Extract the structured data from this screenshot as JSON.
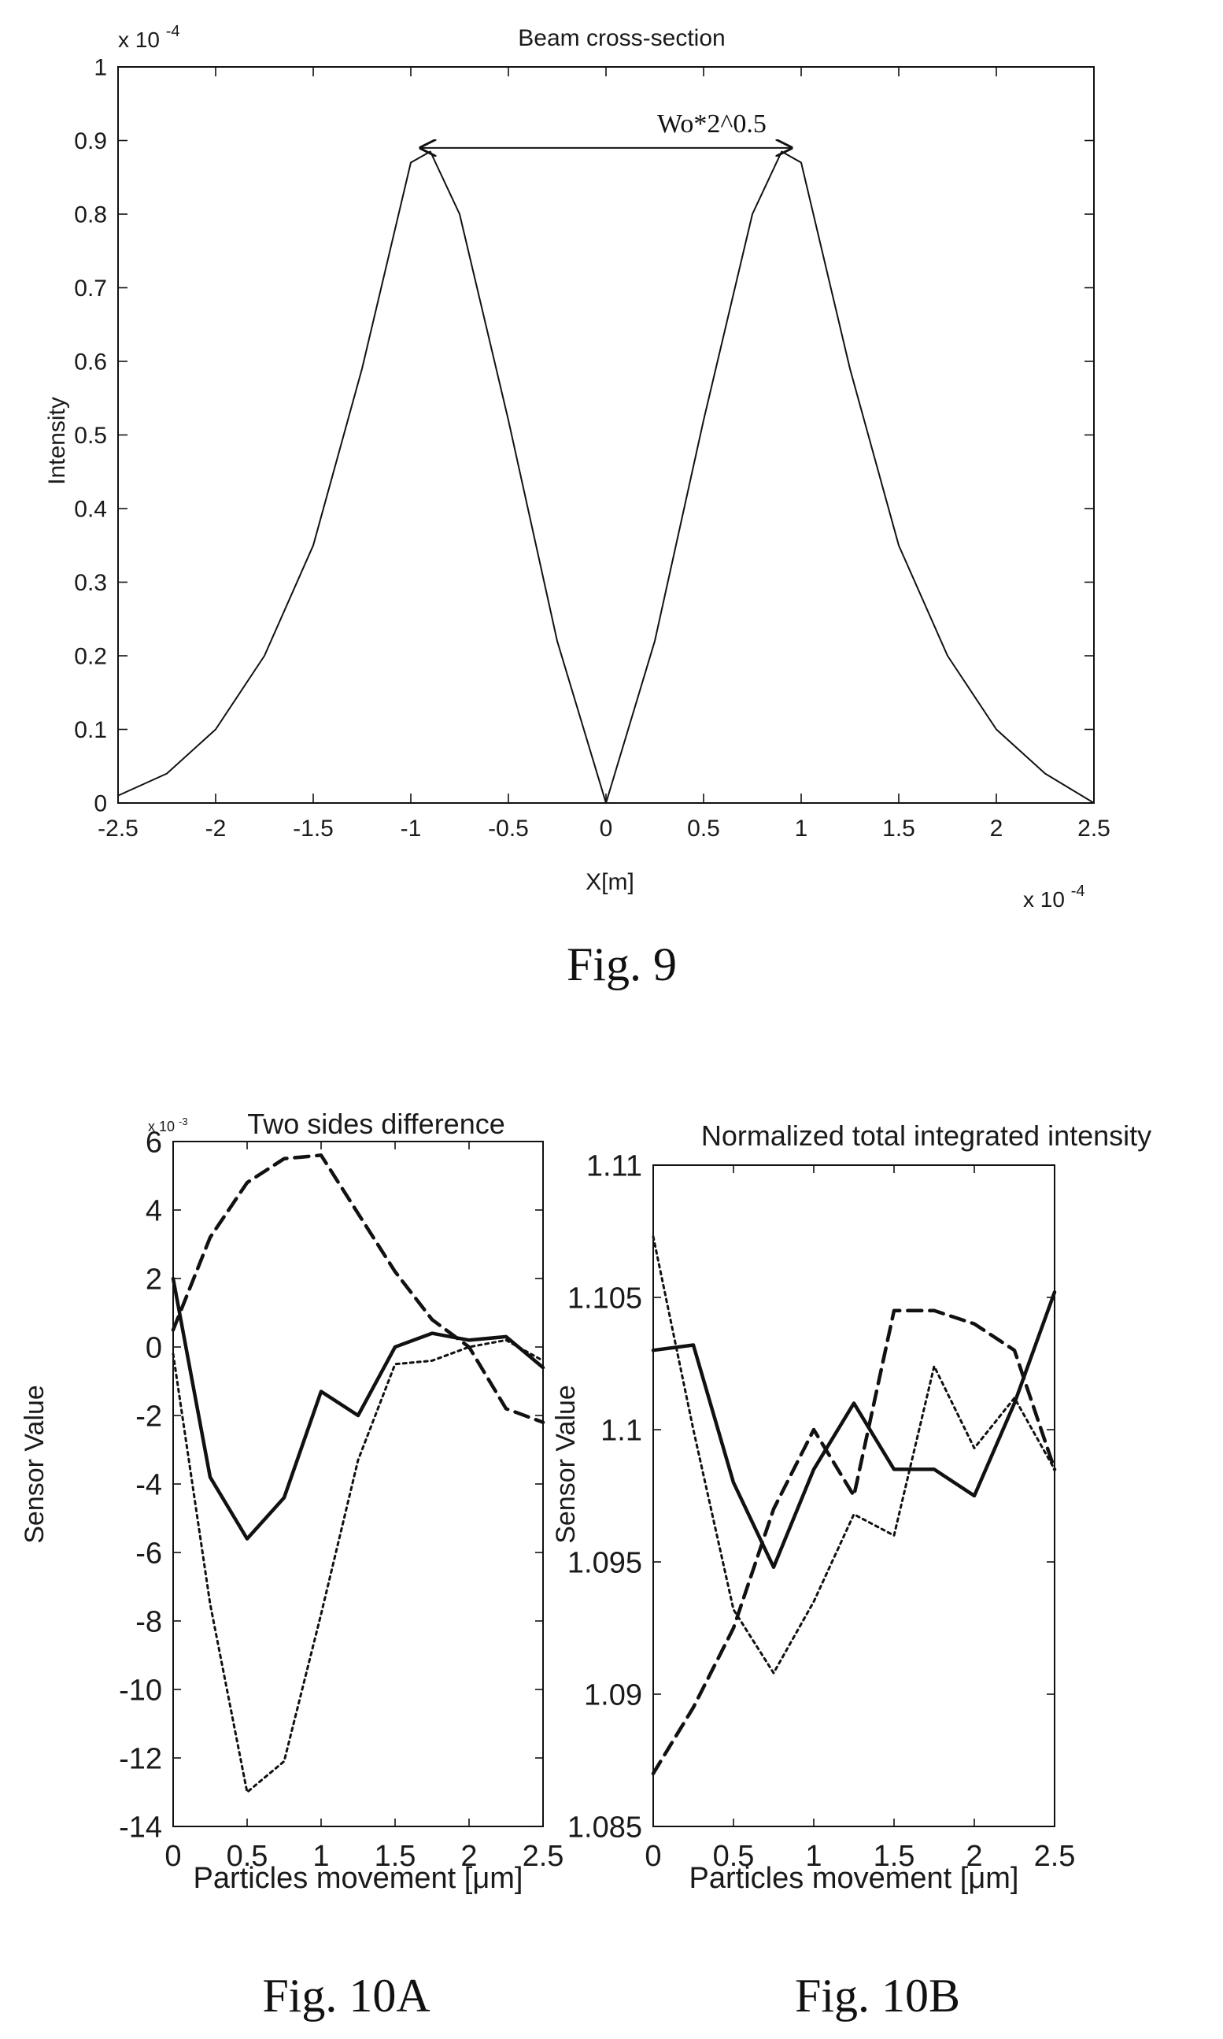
{
  "chart_data": [
    {
      "type": "line",
      "title": "Beam cross-section",
      "xlabel": "X[m]",
      "ylabel": "Intensity",
      "x_multiplier": "x 10",
      "x_multiplier_exp": "-4",
      "y_multiplier": "x 10",
      "y_multiplier_exp": "-4",
      "xlim": [
        -2.5,
        2.5
      ],
      "ylim": [
        0,
        1
      ],
      "xticks": [
        "-2.5",
        "-2",
        "-1.5",
        "-1",
        "-0.5",
        "0",
        "0.5",
        "1",
        "1.5",
        "2",
        "2.5"
      ],
      "yticks": [
        "0",
        "0.1",
        "0.2",
        "0.3",
        "0.4",
        "0.5",
        "0.6",
        "0.7",
        "0.8",
        "0.9",
        "1"
      ],
      "annotation": "Wo*2^0.5",
      "annotation_arrow": {
        "x_from": -0.95,
        "x_to": 0.95,
        "y": 0.89
      },
      "caption": "Fig. 9",
      "series": [
        {
          "style": "solid",
          "x": [
            -2.5,
            -2.25,
            -2.0,
            -1.75,
            -1.5,
            -1.25,
            -1.0,
            -0.9,
            -0.75,
            -0.5,
            -0.25,
            0.0,
            0.25,
            0.5,
            0.75,
            0.9,
            1.0,
            1.25,
            1.5,
            1.75,
            2.0,
            2.25,
            2.5
          ],
          "y": [
            0.01,
            0.04,
            0.1,
            0.2,
            0.35,
            0.59,
            0.87,
            0.885,
            0.8,
            0.52,
            0.22,
            0.0,
            0.22,
            0.52,
            0.8,
            0.885,
            0.87,
            0.59,
            0.35,
            0.2,
            0.1,
            0.04,
            0.0
          ]
        }
      ]
    },
    {
      "type": "line",
      "title": "Two sides difference",
      "xlabel": "Particles movement [μm]",
      "ylabel": "Sensor Value",
      "y_multiplier": "x 10",
      "y_multiplier_exp": "-3",
      "xlim": [
        0,
        2.5
      ],
      "ylim": [
        -14,
        6
      ],
      "xticks": [
        "0",
        "0.5",
        "1",
        "1.5",
        "2",
        "2.5"
      ],
      "yticks": [
        "-14",
        "-12",
        "-10",
        "-8",
        "-6",
        "-4",
        "-2",
        "0",
        "2",
        "4",
        "6"
      ],
      "caption": "Fig. 10A",
      "series": [
        {
          "style": "solid",
          "x": [
            0,
            0.25,
            0.5,
            0.75,
            1.0,
            1.25,
            1.5,
            1.75,
            2.0,
            2.25,
            2.5
          ],
          "y": [
            2.0,
            -3.8,
            -5.6,
            -4.4,
            -1.3,
            -2.0,
            0.0,
            0.4,
            0.2,
            0.3,
            -0.6
          ]
        },
        {
          "style": "dashed",
          "x": [
            0,
            0.25,
            0.5,
            0.75,
            1.0,
            1.25,
            1.5,
            1.75,
            2.0,
            2.25,
            2.5
          ],
          "y": [
            0.5,
            3.2,
            4.8,
            5.5,
            5.6,
            3.9,
            2.2,
            0.8,
            0.0,
            -1.8,
            -2.2
          ]
        },
        {
          "style": "dotted",
          "x": [
            0,
            0.25,
            0.5,
            0.75,
            1.0,
            1.25,
            1.5,
            1.75,
            2.0,
            2.25,
            2.5
          ],
          "y": [
            -0.2,
            -7.5,
            -13.0,
            -12.1,
            -7.8,
            -3.3,
            -0.5,
            -0.4,
            0.0,
            0.2,
            -0.4
          ]
        }
      ]
    },
    {
      "type": "line",
      "title": "Normalized total integrated intensity",
      "xlabel": "Particles movement [μm]",
      "ylabel": "Sensor Value",
      "xlim": [
        0,
        2.5
      ],
      "ylim": [
        1.085,
        1.11
      ],
      "xticks": [
        "0",
        "0.5",
        "1",
        "1.5",
        "2",
        "2.5"
      ],
      "yticks": [
        "1.085",
        "1.09",
        "1.095",
        "1.1",
        "1.105",
        "1.11"
      ],
      "caption": "Fig. 10B",
      "series": [
        {
          "style": "solid",
          "x": [
            0,
            0.25,
            0.5,
            0.75,
            1.0,
            1.25,
            1.5,
            1.75,
            2.0,
            2.25,
            2.5
          ],
          "y": [
            1.103,
            1.1032,
            1.098,
            1.0948,
            1.0985,
            1.101,
            1.0985,
            1.0985,
            1.0975,
            1.101,
            1.1052
          ]
        },
        {
          "style": "dashed",
          "x": [
            0,
            0.25,
            0.5,
            0.75,
            1.0,
            1.25,
            1.5,
            1.75,
            2.0,
            2.25,
            2.5
          ],
          "y": [
            1.087,
            1.0895,
            1.0925,
            1.097,
            1.1,
            1.0975,
            1.1045,
            1.1045,
            1.104,
            1.103,
            1.0985
          ]
        },
        {
          "style": "dotted",
          "x": [
            0,
            0.25,
            0.5,
            0.75,
            1.0,
            1.25,
            1.5,
            1.75,
            2.0,
            2.25,
            2.5
          ],
          "y": [
            1.1073,
            1.1,
            1.0932,
            1.0908,
            1.0935,
            1.0968,
            1.096,
            1.1024,
            1.0993,
            1.1012,
            1.0985
          ]
        }
      ]
    }
  ]
}
